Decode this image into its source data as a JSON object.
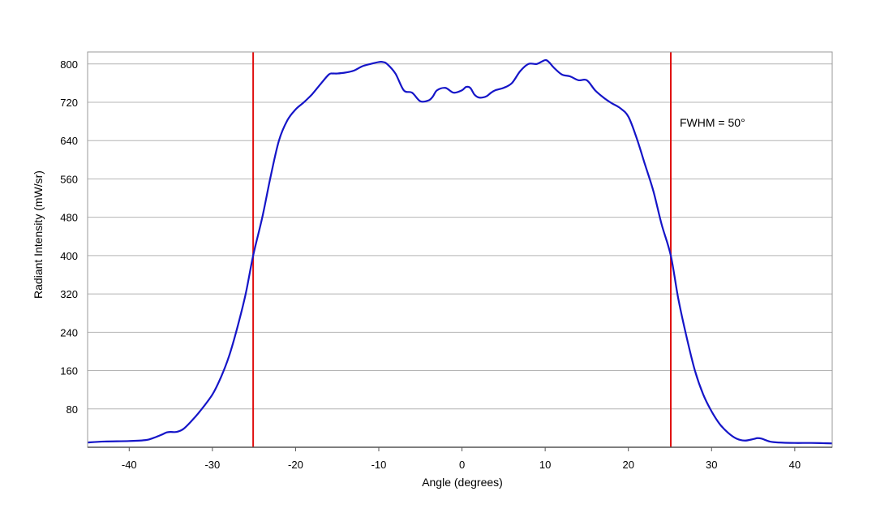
{
  "chart_data": {
    "type": "line",
    "xlabel": "Angle (degrees)",
    "ylabel": "Radiant Intensity (mW/sr)",
    "xlim": [
      -45,
      44.5
    ],
    "ylim": [
      0,
      825
    ],
    "x_ticks": [
      -40,
      -30,
      -20,
      -10,
      0,
      10,
      20,
      30,
      40
    ],
    "x_tick_labels": [
      "-40",
      "-30",
      "-20",
      "-10",
      "0",
      "10",
      "20",
      "30",
      "40"
    ],
    "y_ticks": [
      80,
      160,
      240,
      320,
      400,
      480,
      560,
      640,
      720,
      800
    ],
    "y_tick_labels": [
      "80",
      "160",
      "240",
      "320",
      "400",
      "480",
      "560",
      "640",
      "720",
      "800"
    ],
    "grid": "horizontal",
    "annotation": "FWHM = 50°",
    "colors": {
      "series": "#1515c8",
      "reference_lines": "#e01010",
      "grid": "#b4b4b4",
      "frame": "#999999"
    },
    "reference_lines": [
      {
        "x": -25.1
      },
      {
        "x": 25.1
      }
    ],
    "series": [
      {
        "x": [
          -45,
          -43,
          -40,
          -38,
          -37,
          -36,
          -35.5,
          -35,
          -34.3,
          -33.5,
          -32.5,
          -31.5,
          -30,
          -29,
          -28,
          -27,
          -26,
          -25.1,
          -24,
          -23,
          -22,
          -21,
          -20,
          -19,
          -18,
          -17,
          -16,
          -15.5,
          -15,
          -14,
          -13,
          -12,
          -11,
          -10,
          -9.5,
          -9,
          -8,
          -7,
          -6,
          -5,
          -4,
          -3.5,
          -3,
          -2,
          -1,
          0,
          0.5,
          1,
          1.5,
          2,
          2.5,
          3,
          3.5,
          4,
          5,
          6,
          7,
          8,
          9,
          10,
          10.5,
          11,
          12,
          13,
          14,
          15,
          16,
          17,
          18,
          19,
          20,
          21,
          22,
          23,
          24,
          25.1,
          26,
          27,
          28,
          29,
          30,
          31,
          32,
          33,
          34,
          35,
          35.5,
          36,
          37,
          38,
          40,
          42,
          44.5
        ],
        "values": [
          10,
          12,
          13,
          15,
          20,
          27,
          31,
          32,
          32,
          38,
          55,
          75,
          110,
          145,
          190,
          250,
          320,
          400,
          480,
          565,
          640,
          682,
          705,
          720,
          737,
          758,
          778,
          780,
          780,
          782,
          786,
          795,
          800,
          804,
          804,
          800,
          780,
          745,
          740,
          722,
          724,
          732,
          745,
          750,
          740,
          745,
          752,
          750,
          736,
          730,
          730,
          733,
          740,
          745,
          750,
          760,
          785,
          800,
          800,
          808,
          803,
          793,
          778,
          774,
          766,
          766,
          745,
          730,
          718,
          708,
          690,
          645,
          590,
          535,
          465,
          400,
          310,
          230,
          160,
          110,
          75,
          48,
          30,
          18,
          14,
          17,
          19,
          18,
          12,
          10,
          9,
          9,
          8
        ]
      }
    ]
  }
}
